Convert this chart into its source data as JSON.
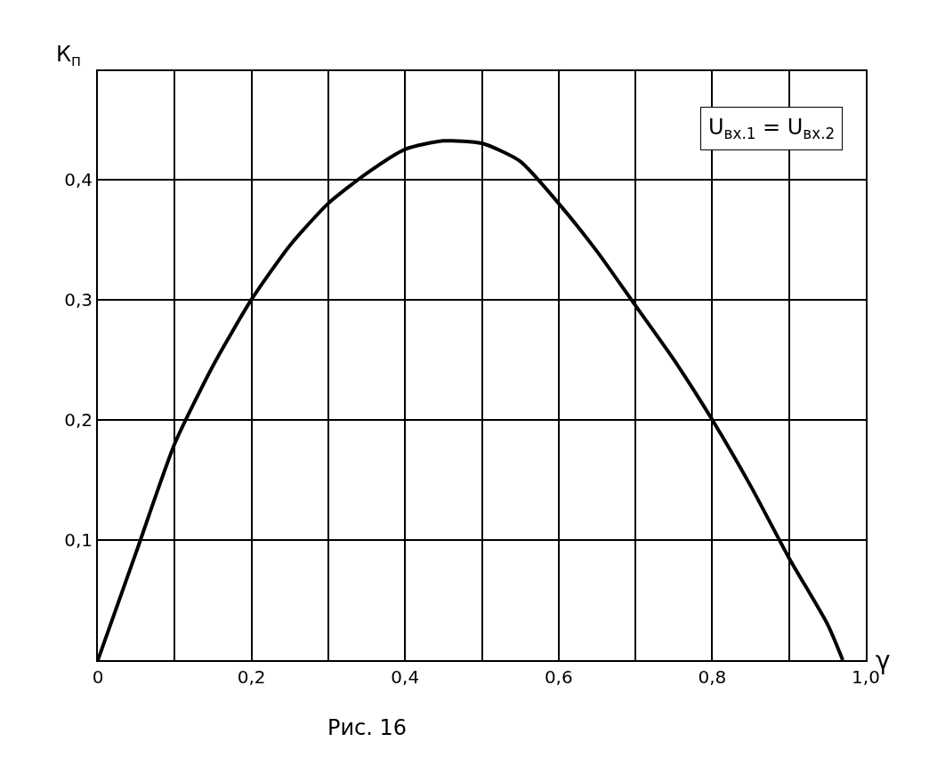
{
  "chart_data": {
    "type": "line",
    "xlabel": "γ",
    "ylabel": "К$_{п}$",
    "annotations": [
      "U$_{вх.1}$ = U$_{вх.2}$",
      "Рис. 16"
    ],
    "x": [
      0,
      0.05,
      0.1,
      0.15,
      0.2,
      0.25,
      0.3,
      0.35,
      0.4,
      0.45,
      0.5,
      0.55,
      0.6,
      0.65,
      0.7,
      0.75,
      0.8,
      0.85,
      0.9,
      0.95,
      0.97
    ],
    "series": [
      {
        "color": "#000000",
        "values": [
          0,
          0.09,
          0.18,
          0.245,
          0.3,
          0.345,
          0.38,
          0.405,
          0.425,
          0.432,
          0.43,
          0.415,
          0.38,
          0.34,
          0.295,
          0.25,
          0.2,
          0.145,
          0.085,
          0.03,
          0
        ]
      }
    ],
    "xlim": [
      0,
      1.0
    ],
    "ylim": [
      0,
      0.49
    ],
    "xticks": [
      0,
      {
        "value": 0.1,
        "label": null
      },
      {
        "value": 0.2,
        "label": "0,2"
      },
      {
        "value": 0.3,
        "label": null
      },
      {
        "value": 0.4,
        "label": "0,4"
      },
      {
        "value": 0.5,
        "label": null
      },
      {
        "value": 0.6,
        "label": "0,6"
      },
      {
        "value": 0.7,
        "label": null
      },
      {
        "value": 0.8,
        "label": "0,8"
      },
      {
        "value": 0.9,
        "label": null
      },
      {
        "value": 1.0,
        "label": "1,0"
      }
    ],
    "yticks": [
      {
        "value": 0.1,
        "label": "0,1"
      },
      {
        "value": 0.2,
        "label": "0,2"
      },
      {
        "value": 0.3,
        "label": "0,3"
      },
      {
        "value": 0.4,
        "label": "0,4"
      }
    ],
    "grid": true,
    "legend": false,
    "marker": "none",
    "line_style": "solid"
  }
}
